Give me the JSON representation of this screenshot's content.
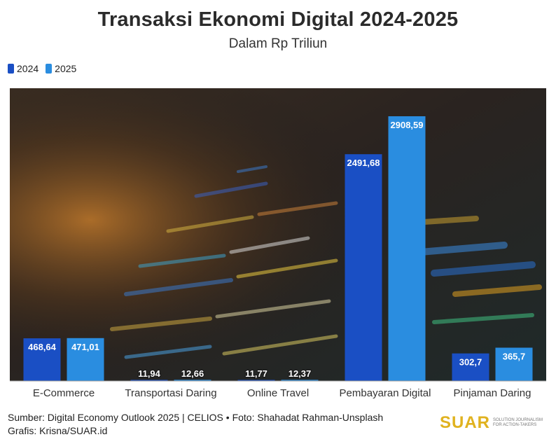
{
  "chart_data": {
    "type": "bar",
    "title": "Transaksi Ekonomi Digital 2024-2025",
    "subtitle": "Dalam Rp Triliun",
    "categories": [
      "E-Commerce",
      "Transportasi Daring",
      "Online Travel",
      "Pembayaran Digital",
      "Pinjaman Daring"
    ],
    "series": [
      {
        "name": "2024",
        "values": [
          468.64,
          11.94,
          11.77,
          2491.68,
          302.7
        ],
        "labels": [
          "468,64",
          "11,94",
          "11,77",
          "2491,68",
          "302,7"
        ],
        "color": "#1a4fc4"
      },
      {
        "name": "2025",
        "values": [
          471.01,
          12.66,
          12.37,
          2908.59,
          365.7
        ],
        "labels": [
          "471,01",
          "12,66",
          "12,37",
          "2908,59",
          "365,7"
        ],
        "color": "#2a8de0"
      }
    ],
    "ylim": [
      0,
      2908.59
    ],
    "grid": false,
    "legend": "top-left"
  },
  "footer": {
    "source": "Sumber: Digital Economy Outlook 2025 | CELIOS • Foto: Shahadat Rahman-Unsplash",
    "credit": "Grafis: Krisna/SUAR.id"
  },
  "logo": {
    "word": "SUAR",
    "tagline": "SOLUTION JOURNALISM FOR ACTION-TAKERS"
  }
}
